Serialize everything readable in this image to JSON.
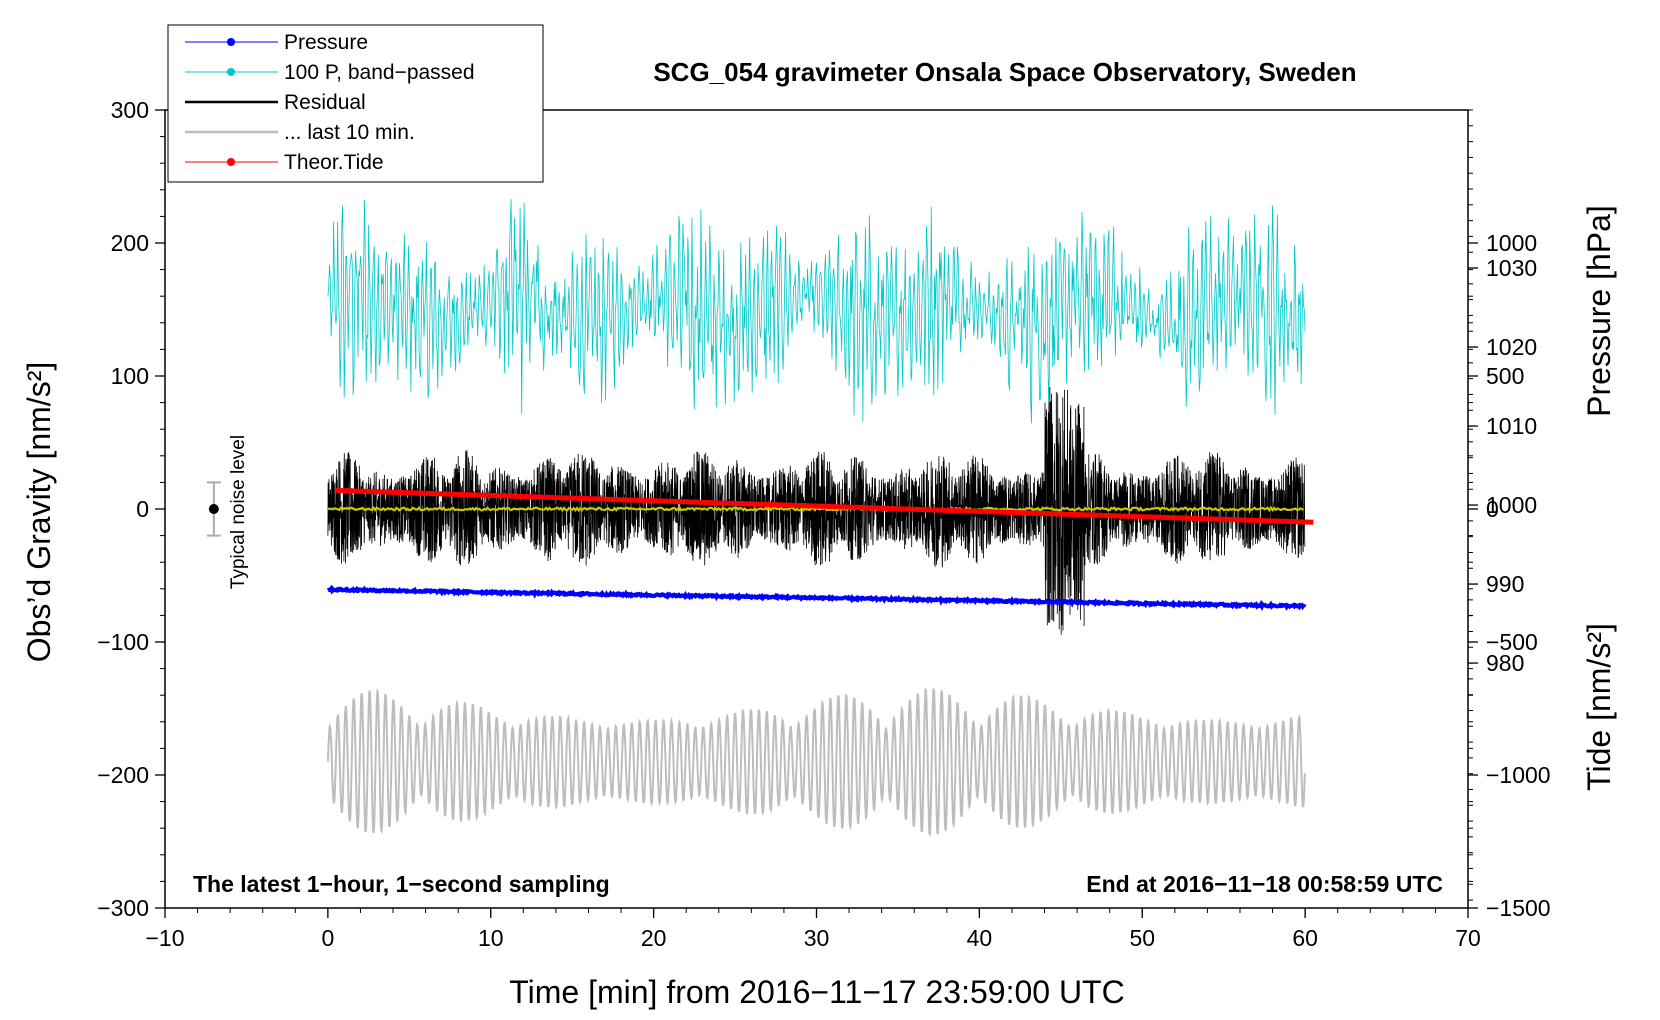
{
  "chart_data": {
    "type": "line",
    "title": "SCG_054 gravimeter Onsala Space Observatory, Sweden",
    "xlabel": "Time [min] from 2016−11−17 23:59:00 UTC",
    "ylabel": "Obs’d Gravity [nm/s²]",
    "y2label_pressure": "Pressure [hPa]",
    "y2label_tide": "Tide [nm/s²]",
    "xlim": [
      -10,
      70
    ],
    "ylim": [
      -300,
      300
    ],
    "xticks": [
      -10,
      0,
      10,
      20,
      30,
      40,
      50,
      60,
      70
    ],
    "xtick_labels": [
      "−10",
      "0",
      "10",
      "20",
      "30",
      "40",
      "50",
      "60",
      "70"
    ],
    "yticks": [
      -300,
      -200,
      -100,
      0,
      100,
      200,
      300
    ],
    "ytick_labels": [
      "−300",
      "−200",
      "−100",
      "0",
      "100",
      "200",
      "300"
    ],
    "pressure_axis": {
      "range": [
        949,
        1050
      ],
      "ticks": [
        980,
        990,
        1000,
        1010,
        1020,
        1030
      ],
      "tick_labels": [
        "980",
        "990",
        "1000",
        "1010",
        "1020",
        "1030"
      ]
    },
    "tide_axis": {
      "range": [
        -1500,
        1500
      ],
      "ticks": [
        -1500,
        -1000,
        -500,
        0,
        500,
        1000
      ],
      "tick_labels": [
        "−1500",
        "−1000",
        "−500",
        "0",
        "500",
        "1000"
      ]
    },
    "legend": [
      {
        "label": "Pressure",
        "color": "#0000ff",
        "marker": true
      },
      {
        "label": "100 P, band−passed",
        "color": "#00c8c8",
        "marker": true
      },
      {
        "label": "Residual",
        "color": "#000000",
        "marker": false
      },
      {
        "label": "... last 10 min.",
        "color": "#bdbdbd",
        "marker": false
      },
      {
        "label": "Theor.Tide",
        "color": "#ff0000",
        "marker": true
      }
    ],
    "series": [
      {
        "name": "Pressure",
        "axis": "pressure",
        "x_range": [
          0,
          60
        ],
        "start": 989.3,
        "end": 987.2
      },
      {
        "name": "100 P, band−passed",
        "axis": "gravity",
        "x_range": [
          0,
          60
        ],
        "mean": 150,
        "amplitude": 80
      },
      {
        "name": "Residual",
        "axis": "gravity",
        "x_range": [
          0,
          60
        ],
        "mean": 0,
        "amplitude": 60
      },
      {
        "name": "... last 10 min.",
        "axis": "gravity",
        "x_range": [
          0,
          60
        ],
        "mean": -190,
        "amplitude": 55
      },
      {
        "name": "Theor.Tide",
        "axis": "tide",
        "x_range": [
          0.5,
          60.5
        ],
        "start": 70,
        "end": -50
      },
      {
        "name": "filtered",
        "axis": "gravity",
        "x_range": [
          0,
          60
        ],
        "value": 0
      }
    ],
    "noise_label": "Typical noise level",
    "noise_level": 20,
    "annotation_left": "The latest 1−hour, 1−second sampling",
    "annotation_right": "End at 2016−11−18 00:58:59 UTC",
    "colors": {
      "pressure": "#0000ff",
      "bandpassed": "#00c8c8",
      "residual": "#000000",
      "last10": "#bdbdbd",
      "tide": "#ff0000",
      "filtered": "#c8c800",
      "noise_bar": "#aaaaaa"
    }
  }
}
